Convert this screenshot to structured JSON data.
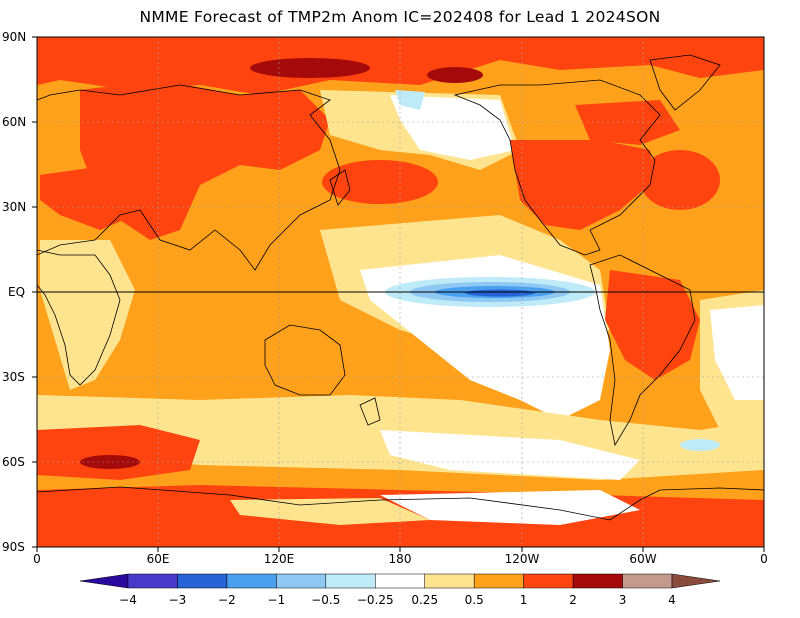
{
  "title": "NMME Forecast of TMP2m Anom IC=202408 for Lead 1 2024SON",
  "lat_labels": [
    "90N",
    "60N",
    "30N",
    "EQ",
    "30S",
    "60S",
    "90S"
  ],
  "lon_labels": [
    "0",
    "60E",
    "120E",
    "180",
    "120W",
    "60W",
    "0"
  ],
  "colorbar": {
    "labels": [
      "−4",
      "−3",
      "−2",
      "−1",
      "−0.5",
      "−0.25",
      "0.25",
      "0.5",
      "1",
      "2",
      "3",
      "4"
    ],
    "colors": [
      "#2a0a9e",
      "#4a3acb",
      "#2563d6",
      "#4aa0ee",
      "#8ec8f3",
      "#bfeaf8",
      "#ffffff",
      "#ffe48f",
      "#ffa11a",
      "#ff4410",
      "#a50a0a",
      "#c49a8e",
      "#8a4b3c"
    ]
  },
  "map_colors": {
    "water_base": "#ffa11a",
    "warm_light": "#ffe48f",
    "warm_strong": "#ff4410",
    "warm_extreme": "#a50a0a",
    "neutral": "#ffffff",
    "cool_light": "#bfeaf8",
    "cool_mid": "#8ec8f3",
    "cool_strong": "#4aa0ee",
    "cool_deep": "#2563d6",
    "coast": "#000000"
  }
}
